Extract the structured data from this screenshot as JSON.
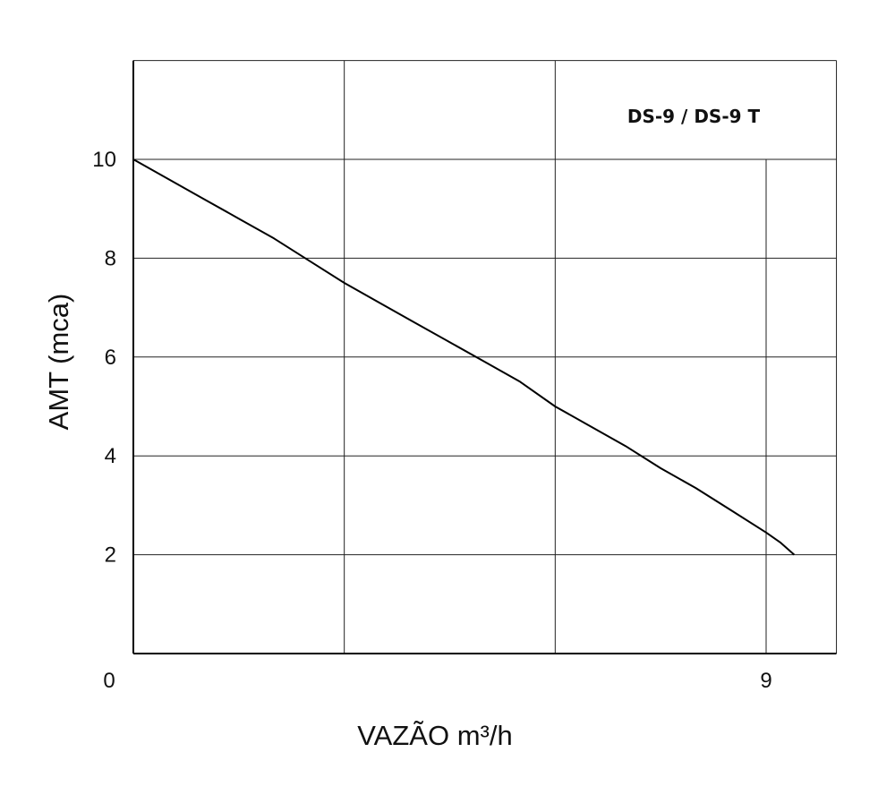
{
  "chart_data": {
    "type": "line",
    "title": "DS-9 / DS-9 T",
    "xlabel": "VAZÃO m³/h",
    "ylabel": "AMT (mca)",
    "xlim": [
      0,
      10
    ],
    "ylim": [
      0,
      12
    ],
    "x_tick_labels": [
      {
        "value": 0,
        "label": "0"
      },
      {
        "value": 9,
        "label": "9"
      }
    ],
    "y_tick_labels": [
      {
        "value": 2,
        "label": "2"
      },
      {
        "value": 4,
        "label": "4"
      },
      {
        "value": 6,
        "label": "6"
      },
      {
        "value": 8,
        "label": "8"
      },
      {
        "value": 10,
        "label": "10"
      }
    ],
    "grid": true,
    "grid_x": [
      0,
      3,
      6,
      9,
      10
    ],
    "grid_y": [
      0,
      2,
      4,
      6,
      8,
      10,
      12
    ],
    "series": [
      {
        "color": "#000000",
        "x": [
          0,
          0.5,
          1,
          1.5,
          2,
          2.5,
          3,
          3.5,
          4,
          4.5,
          5,
          5.5,
          6,
          6.5,
          7,
          7.5,
          8,
          8.5,
          9,
          9.2,
          9.4
        ],
        "y": [
          10,
          9.6,
          9.2,
          8.8,
          8.4,
          7.95,
          7.5,
          7.1,
          6.7,
          6.3,
          5.9,
          5.5,
          5.0,
          4.6,
          4.2,
          3.75,
          3.35,
          2.9,
          2.45,
          2.25,
          2.0
        ]
      }
    ]
  }
}
